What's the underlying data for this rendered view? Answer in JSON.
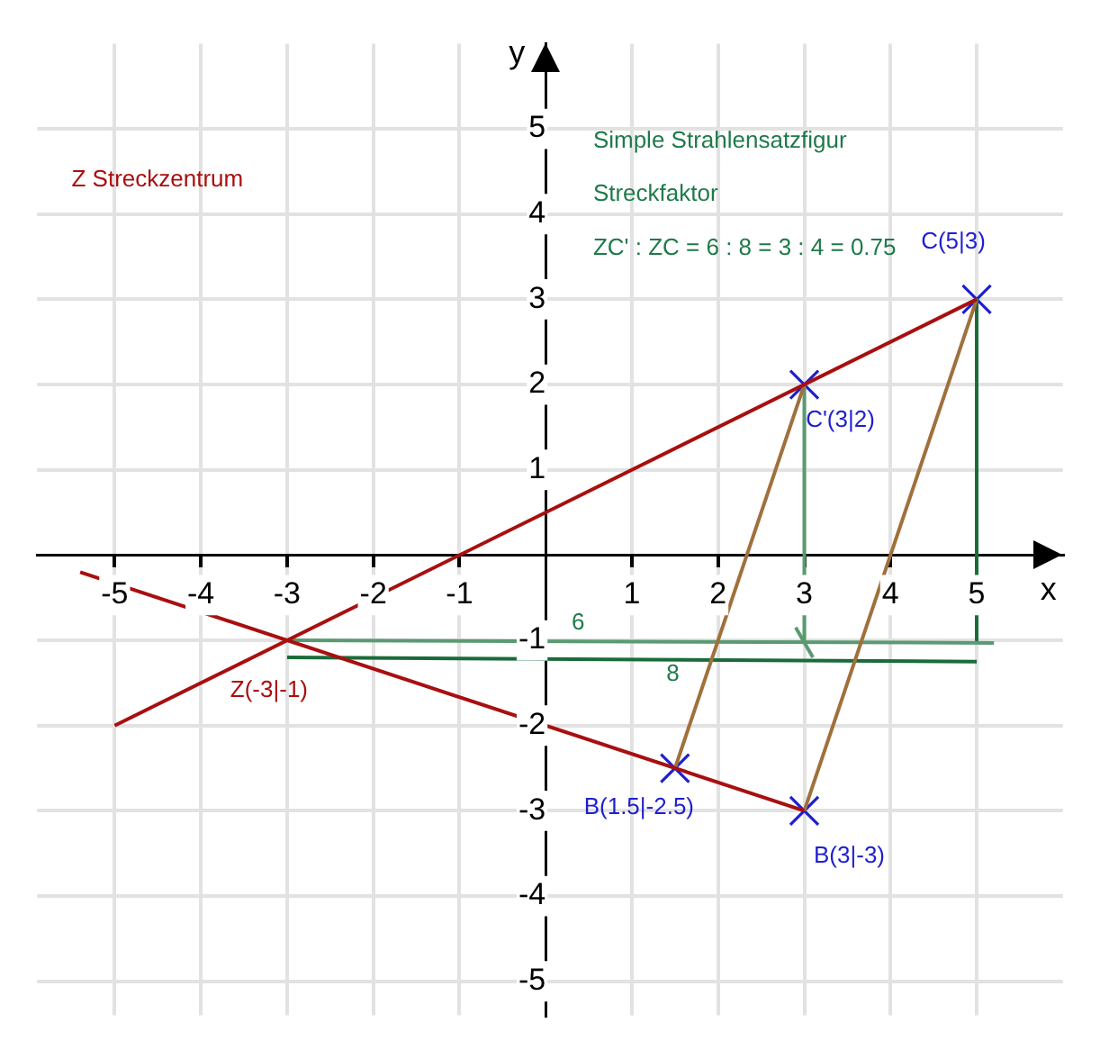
{
  "chart_data": {
    "type": "line",
    "title": "Simple Strahlensatzfigur",
    "subtitle": "Streckfaktor",
    "xlabel": "x",
    "ylabel": "y",
    "xlim": [
      -5.9,
      6
    ],
    "ylim": [
      -5.4,
      6
    ],
    "xticks": [
      -5,
      -4,
      -3,
      -2,
      -1,
      1,
      2,
      3,
      4,
      5
    ],
    "yticks": [
      -5,
      -4,
      -3,
      -2,
      -1,
      1,
      2,
      3,
      4,
      5
    ],
    "grid": true,
    "legend": false,
    "series": [
      {
        "color": "#a80f0f",
        "x": [
          -5,
          5
        ],
        "values": [
          -2,
          3
        ],
        "marker": "none"
      },
      {
        "color": "#a80f0f",
        "x": [
          -5.4,
          3
        ],
        "values": [
          -0.2,
          -3
        ],
        "marker": "none"
      },
      {
        "color": "#a0703c",
        "x": [
          1.5,
          3
        ],
        "values": [
          -2.5,
          2
        ],
        "marker": "none"
      },
      {
        "color": "#a0703c",
        "x": [
          3,
          5
        ],
        "values": [
          -3,
          3
        ],
        "marker": "none"
      },
      {
        "color": "#5a9a72",
        "x": [
          -3,
          5.2
        ],
        "values": [
          -1,
          -1.03
        ],
        "marker": "none"
      },
      {
        "color": "#1a6b3a",
        "x": [
          -3,
          5
        ],
        "values": [
          -1.2,
          -1.25
        ],
        "marker": "none"
      },
      {
        "color": "#5a9a72",
        "x": [
          3,
          3
        ],
        "values": [
          2,
          -1
        ],
        "marker": "none"
      },
      {
        "color": "#1a6b3a",
        "x": [
          5,
          5
        ],
        "values": [
          3,
          -1
        ],
        "marker": "none"
      },
      {
        "color": "#5a9a72",
        "x": [
          2.9,
          3.1
        ],
        "values": [
          -0.85,
          -1.2
        ],
        "marker": "none"
      },
      {
        "type": "scatter",
        "color": "#1f1fd0",
        "x": [
          5,
          3,
          1.5,
          3
        ],
        "values": [
          3,
          2,
          -2.5,
          -3
        ],
        "marker": "cross"
      }
    ],
    "annotations": [
      "Z Streckzentrum",
      "ZC' : ZC = 6 : 8 = 3 : 4 = 0.75",
      {
        "text": "C(5|3)",
        "x": 5,
        "y": 3
      },
      {
        "text": "C'(3|2)",
        "x": 3,
        "y": 2
      },
      {
        "text": "Z(-3|-1)",
        "x": -3,
        "y": -1
      },
      {
        "text": "B(1.5|-2.5)",
        "x": 1.5,
        "y": -2.5
      },
      {
        "text": "B(3|-3)",
        "x": 3,
        "y": -3
      },
      "6",
      "8"
    ]
  }
}
